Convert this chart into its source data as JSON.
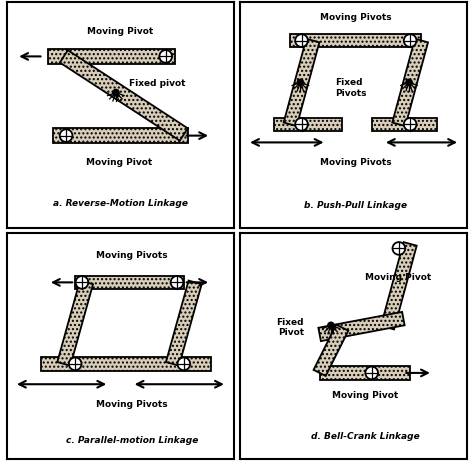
{
  "bg_color": "#ffffff",
  "link_fill": "#d8cdb8",
  "link_hatch": "....",
  "border_color": "#000000",
  "title_a": "a. Reverse-Motion Linkage",
  "title_b": "b. Push-Pull Linkage",
  "title_c": "c. Parallel-motion Linkage",
  "title_d": "d. Bell-Crank Linkage",
  "label_moving_pivot": "Moving Pivot",
  "label_moving_pivots": "Moving Pivots",
  "label_fixed_pivot": "Fixed pivot",
  "label_fixed_pivots": "Fixed\nPivots",
  "label_fixed_pivot_d": "Fixed\nPivot"
}
